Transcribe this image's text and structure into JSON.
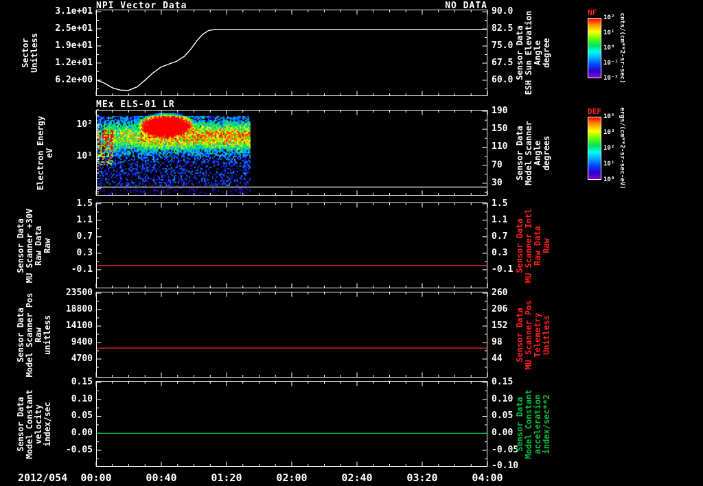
{
  "page": {
    "background": "#000000"
  },
  "time_axis": {
    "date_label": "2012/054",
    "ticks": [
      "00:00",
      "00:40",
      "01:20",
      "02:00",
      "02:40",
      "03:20",
      "04:00"
    ]
  },
  "panels": [
    {
      "title": "NPI Vector Data",
      "status": "NO DATA",
      "left_label_lines": [
        "Sector",
        "Unitless"
      ],
      "right_label_lines": [
        "Sensor Data",
        "ESH Sun Elevation",
        "Angle",
        "degree"
      ],
      "right_label_color": "#ffffff"
    },
    {
      "title": "MEx ELS-01 LR",
      "left_label_lines": [
        "Electron Energy",
        "eV"
      ],
      "right_label_lines": [
        "Sensor Data",
        "Model Scanner",
        "Angle",
        "degrees"
      ],
      "right_label_color": "#ffffff"
    },
    {
      "left_label_lines": [
        "Sensor Data",
        "MU Scanner +30V",
        "Raw Data",
        "Raw"
      ],
      "right_label_lines": [
        "Sensor Data",
        "MU Scanner Intl",
        "Raw Data",
        "Raw"
      ],
      "right_label_color": "#ff2020"
    },
    {
      "left_label_lines": [
        "Sensor Data",
        "Model Scanner Pos",
        "Raw",
        "unitless"
      ],
      "right_label_lines": [
        "Sensor Data",
        "MU Scanner Pos",
        "Telemetry",
        "Unitless"
      ],
      "right_label_color": "#ff2020"
    },
    {
      "left_label_lines": [
        "Sensor Data",
        "Model Constant",
        "velocity",
        "index/sec"
      ],
      "right_label_lines": [
        "Sensor Data",
        "Model Constant",
        "acceleration",
        "index/sec**2"
      ],
      "right_label_color": "#00c040"
    }
  ],
  "colorbars": [
    {
      "title": "NF",
      "title_color": "#ff2020",
      "ticks": [
        "10²",
        "10¹",
        "10⁰",
        "10⁻¹",
        "10⁻²"
      ],
      "units": "cnts/(cm**2-sr-sec)"
    },
    {
      "title": "DEF",
      "title_color": "#ff2020",
      "ticks": [
        "10⁴",
        "10³",
        "10²",
        "10¹",
        "10⁰"
      ],
      "units": "ergs/(cm**2-sr-sec-eV)"
    }
  ],
  "chart_data": [
    {
      "type": "line",
      "title": "NPI Vector Data",
      "annotation": "NO DATA",
      "xlabel": "time 2012/054 00:00 to 04:00 (hours)",
      "xlim": [
        0,
        4
      ],
      "ylabel": "Sector Unitless",
      "ylim": [
        31.75,
        0.44
      ],
      "yticks": [
        {
          "v": 31.0,
          "label": "3.1e+01"
        },
        {
          "v": 24.8,
          "label": "2.5e+01"
        },
        {
          "v": 18.6,
          "label": "1.9e+01"
        },
        {
          "v": 12.4,
          "label": "1.2e+01"
        },
        {
          "v": 6.2,
          "label": "6.2e+00"
        }
      ],
      "y2label": "Sensor Data ESH Sun Elevation Angle degree",
      "y2lim": [
        90.95,
        53.07
      ],
      "y2ticks": [
        {
          "v": 90.0,
          "label": "90.0"
        },
        {
          "v": 82.5,
          "label": "82.5"
        },
        {
          "v": 75.0,
          "label": "75.0"
        },
        {
          "v": 67.5,
          "label": "67.5"
        },
        {
          "v": 60.0,
          "label": "60.0"
        }
      ],
      "series": [
        {
          "name": "Sector",
          "color": "#ffffff",
          "points": [
            [
              0,
              6.3
            ],
            [
              0.08,
              5.2
            ],
            [
              0.17,
              3.4
            ],
            [
              0.25,
              2.6
            ],
            [
              0.33,
              2.5
            ],
            [
              0.42,
              3.8
            ],
            [
              0.5,
              6.2
            ],
            [
              0.58,
              8.8
            ],
            [
              0.66,
              10.9
            ],
            [
              0.74,
              12.0
            ],
            [
              0.82,
              13.0
            ],
            [
              0.9,
              14.8
            ],
            [
              0.97,
              17.5
            ],
            [
              1.03,
              20.5
            ],
            [
              1.09,
              22.8
            ],
            [
              1.15,
              24.2
            ],
            [
              1.22,
              24.6
            ],
            [
              4.0,
              24.6
            ]
          ]
        }
      ]
    },
    {
      "type": "heatmap",
      "title": "MEx ELS-01 LR",
      "yscale": "log",
      "ylabel": "Electron Energy eV",
      "ylim": [
        300,
        0.58
      ],
      "yticks": [
        {
          "v": 100,
          "label": "10²"
        },
        {
          "v": 10,
          "label": "10¹"
        }
      ],
      "y2label": "Sensor Data Model Scanner Angle degrees",
      "y2lim": [
        193,
        2.5
      ],
      "y2ticks": [
        {
          "v": 190,
          "label": "190"
        },
        {
          "v": 150,
          "label": "150"
        },
        {
          "v": 110,
          "label": "110"
        },
        {
          "v": 70,
          "label": "70"
        },
        {
          "v": 30,
          "label": "30"
        }
      ],
      "xlim": [
        0,
        4
      ],
      "data_extent_hours": [
        0,
        1.57
      ],
      "data_extent_fraction": 0.392,
      "overlay_line": {
        "color": "#ffffff",
        "y_fraction": 0.9
      },
      "colormap": "rainbow",
      "description": "Electron energy spectrogram; data only during first ~1.57 h. Intense red flux patch near 30-200 eV around 00:25-00:55, green band near 20-100 eV across the data interval, sparse blue/violet speckle at lower energies, black (no data) after ~01:34."
    },
    {
      "type": "line",
      "xlim": [
        0,
        4
      ],
      "ylabel": "Sensor Data MU Scanner +30V Raw Data Raw",
      "ylim": [
        1.53,
        -0.55
      ],
      "yticks": [
        {
          "v": 1.5,
          "label": "1.5"
        },
        {
          "v": 1.1,
          "label": "1.1"
        },
        {
          "v": 0.7,
          "label": "0.7"
        },
        {
          "v": 0.3,
          "label": "0.3"
        },
        {
          "v": -0.1,
          "label": "-0.1"
        }
      ],
      "y2label": "Sensor Data MU Scanner Intl Raw Data Raw",
      "y2lim": [
        1.53,
        -0.55
      ],
      "y2ticks": [
        {
          "v": 1.5,
          "label": "1.5"
        },
        {
          "v": 1.1,
          "label": "1.1"
        },
        {
          "v": 0.7,
          "label": "0.7"
        },
        {
          "v": 0.3,
          "label": "0.3"
        },
        {
          "v": -0.1,
          "label": "-0.1"
        }
      ],
      "series": [
        {
          "name": "MU Scanner +30V Raw",
          "color": "#ff2020",
          "constant": 0.0
        }
      ]
    },
    {
      "type": "line",
      "xlim": [
        0,
        4
      ],
      "ylabel": "Sensor Data Model Scanner Pos Raw unitless",
      "ylim": [
        23890,
        -590
      ],
      "yticks": [
        {
          "v": 23500,
          "label": "23500"
        },
        {
          "v": 18800,
          "label": "18800"
        },
        {
          "v": 14100,
          "label": "14100"
        },
        {
          "v": 9400,
          "label": "9400"
        },
        {
          "v": 4700,
          "label": "4700"
        }
      ],
      "y2label": "Sensor Data MU Scanner Pos Telemetry Unitless",
      "y2lim": [
        264.5,
        -16.75
      ],
      "y2ticks": [
        {
          "v": 260,
          "label": "260"
        },
        {
          "v": 206,
          "label": "206"
        },
        {
          "v": 152,
          "label": "152"
        },
        {
          "v": 98,
          "label": "98"
        },
        {
          "v": 44,
          "label": "44"
        }
      ],
      "series": [
        {
          "name": "Model Scanner Pos Raw",
          "color": "#ff2020",
          "constant": 7800
        }
      ]
    },
    {
      "type": "line",
      "xlim": [
        0,
        4
      ],
      "ylabel": "Sensor Data Model Constant velocity index/sec",
      "ylim": [
        0.154,
        -0.0985
      ],
      "yticks": [
        {
          "v": 0.15,
          "label": "0.15"
        },
        {
          "v": 0.1,
          "label": "0.10"
        },
        {
          "v": 0.05,
          "label": "0.05"
        },
        {
          "v": 0.0,
          "label": "0.00"
        },
        {
          "v": -0.05,
          "label": "-0.05"
        }
      ],
      "y2label": "Sensor Data Model Constant acceleration index/sec**2",
      "y2lim": [
        0.154,
        -0.0985
      ],
      "y2ticks": [
        {
          "v": 0.15,
          "label": "0.15"
        },
        {
          "v": 0.1,
          "label": "0.10"
        },
        {
          "v": 0.05,
          "label": "0.05"
        },
        {
          "v": 0.0,
          "label": "0.00"
        },
        {
          "v": -0.05,
          "label": "-0.05"
        },
        {
          "v": -0.1,
          "label": "-0.10"
        }
      ],
      "series": [
        {
          "name": "Model Constant velocity",
          "color": "#00c040",
          "constant": 0.0
        }
      ]
    }
  ]
}
